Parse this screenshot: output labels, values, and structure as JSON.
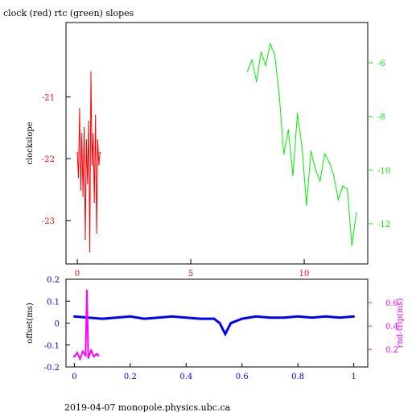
{
  "title": "clock (red) rtc (green) slopes",
  "footer": "2019-04-07 monopole.physics.ubc.ca",
  "colors": {
    "clock": "#ff0000",
    "rtc": "#00ee00",
    "offset": "#0000ff",
    "rndtrip": "#ff00ff",
    "frame": "#000000"
  },
  "chart_data": [
    {
      "type": "line",
      "title": "clock (red) rtc (green) slopes",
      "ylabel": "clockslope",
      "xlim": [
        -0.5,
        12.8
      ],
      "ylim": [
        -23.7,
        -19.8
      ],
      "y2lim": [
        -13.5,
        -4.5
      ],
      "xticks": [
        0,
        5,
        10
      ],
      "yticks": [
        -23,
        -22,
        -21
      ],
      "y2ticks": [
        -12,
        -10,
        -8,
        -6
      ],
      "series": [
        {
          "name": "clock",
          "axis": "left",
          "x": [
            0.0,
            0.05,
            0.1,
            0.15,
            0.2,
            0.25,
            0.3,
            0.35,
            0.4,
            0.45,
            0.5,
            0.55,
            0.6,
            0.65,
            0.7,
            0.75,
            0.8,
            0.85,
            0.9,
            0.95,
            1.0
          ],
          "y": [
            -21.9,
            -22.3,
            -21.2,
            -22.5,
            -21.6,
            -22.6,
            -21.5,
            -23.3,
            -21.7,
            -22.4,
            -21.4,
            -23.5,
            -20.6,
            -22.1,
            -21.6,
            -22.7,
            -21.3,
            -23.2,
            -21.7,
            -22.1,
            -21.9
          ]
        },
        {
          "name": "rtc",
          "axis": "right",
          "x": [
            7.5,
            7.7,
            7.9,
            8.1,
            8.3,
            8.5,
            8.7,
            8.9,
            9.1,
            9.3,
            9.5,
            9.7,
            9.9,
            10.1,
            10.3,
            10.5,
            10.7,
            10.9,
            11.1,
            11.3,
            11.5,
            11.7,
            11.9,
            12.1,
            12.3
          ],
          "y": [
            -6.3,
            -5.9,
            -6.7,
            -5.6,
            -6.1,
            -5.3,
            -5.7,
            -7.2,
            -9.4,
            -8.5,
            -10.2,
            -7.9,
            -9.1,
            -11.3,
            -9.3,
            -10.0,
            -10.4,
            -9.4,
            -9.7,
            -10.2,
            -11.1,
            -10.6,
            -10.7,
            -12.8,
            -11.6
          ]
        }
      ]
    },
    {
      "type": "scatter",
      "ylabel": "offset(ms)",
      "y2label": "rnd-trip(ms)",
      "xlim": [
        -0.03,
        1.05
      ],
      "ylim": [
        -0.2,
        0.2
      ],
      "y2lim": [
        0.05,
        0.8
      ],
      "xticks": [
        0,
        0.2,
        0.4,
        0.6,
        0.8,
        1
      ],
      "yticks": [
        -0.2,
        -0.1,
        0,
        0.1,
        0.2
      ],
      "y2ticks": [
        0.2,
        0.4,
        0.6
      ],
      "series": [
        {
          "name": "offset",
          "axis": "left",
          "x": [
            0.0,
            0.05,
            0.1,
            0.15,
            0.2,
            0.25,
            0.3,
            0.35,
            0.4,
            0.45,
            0.5,
            0.52,
            0.54,
            0.56,
            0.6,
            0.65,
            0.7,
            0.75,
            0.8,
            0.85,
            0.9,
            0.95,
            1.0
          ],
          "y": [
            0.03,
            0.025,
            0.02,
            0.025,
            0.03,
            0.02,
            0.025,
            0.03,
            0.025,
            0.02,
            0.02,
            0.0,
            -0.05,
            0.0,
            0.02,
            0.03,
            0.025,
            0.025,
            0.03,
            0.025,
            0.03,
            0.025,
            0.03
          ]
        },
        {
          "name": "rnd-trip",
          "axis": "right",
          "x": [
            0.0,
            0.01,
            0.02,
            0.03,
            0.04,
            0.045,
            0.05,
            0.06,
            0.07,
            0.08,
            0.085
          ],
          "y": [
            0.14,
            0.17,
            0.12,
            0.18,
            0.15,
            0.7,
            0.13,
            0.19,
            0.14,
            0.16,
            0.15
          ]
        }
      ]
    }
  ]
}
